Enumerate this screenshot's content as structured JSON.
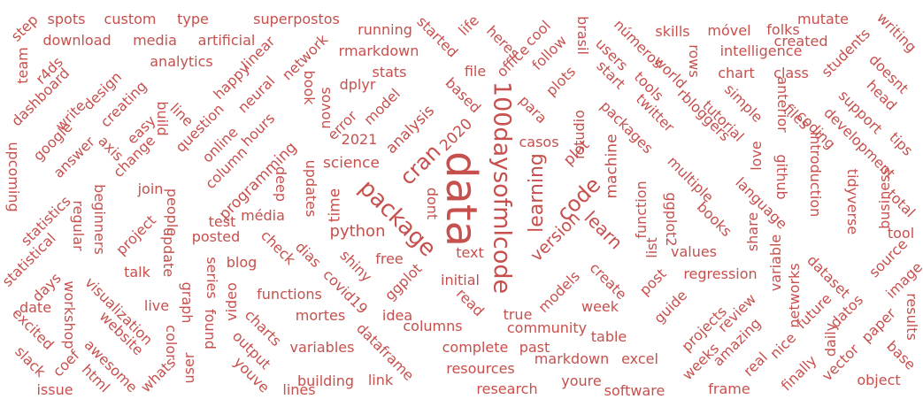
{
  "colors": {
    "word": "#c6504d",
    "background": "#ffffff"
  },
  "words": [
    {
      "text": "data",
      "weight": 48,
      "rot": 90
    },
    {
      "text": "100daysofmlcode",
      "weight": 27,
      "rot": 90
    },
    {
      "text": "package",
      "weight": 26,
      "rot": 45
    },
    {
      "text": "cran",
      "weight": 24,
      "rot": -45
    },
    {
      "text": "code",
      "weight": 24,
      "rot": -45
    },
    {
      "text": "learning",
      "weight": 22,
      "rot": -90
    },
    {
      "text": "learn",
      "weight": 20,
      "rot": 45
    },
    {
      "text": "version",
      "weight": 19,
      "rot": -45
    },
    {
      "text": "python",
      "weight": 18,
      "rot": 0
    },
    {
      "text": "science",
      "weight": 17,
      "rot": 0
    },
    {
      "text": "2020",
      "weight": 17,
      "rot": -45
    },
    {
      "text": "analysis",
      "weight": 17,
      "rot": -45
    },
    {
      "text": "machine",
      "weight": 17,
      "rot": -90
    },
    {
      "text": "programming",
      "weight": 17,
      "rot": -45
    },
    {
      "text": "time",
      "weight": 17,
      "rot": -90
    },
    {
      "text": "plot",
      "weight": 17,
      "rot": -45
    },
    {
      "text": "updates",
      "weight": 16,
      "rot": 90
    },
    {
      "text": "ggplot",
      "weight": 16,
      "rot": -45
    },
    {
      "text": "function",
      "weight": 16,
      "rot": -90
    },
    {
      "text": "free",
      "weight": 16,
      "rot": 0
    },
    {
      "text": "model",
      "weight": 16,
      "rot": -45
    },
    {
      "text": "shiny",
      "weight": 16,
      "rot": 45
    },
    {
      "text": "covid19",
      "weight": 16,
      "rot": 45
    },
    {
      "text": "dias",
      "weight": 16,
      "rot": 45
    },
    {
      "text": "initial",
      "weight": 16,
      "rot": 0
    },
    {
      "text": "check",
      "weight": 16,
      "rot": 45
    },
    {
      "text": "error",
      "weight": 16,
      "rot": -45
    },
    {
      "text": "multiple",
      "weight": 16,
      "rot": 45
    },
    {
      "text": "language",
      "weight": 16,
      "rot": 45
    },
    {
      "text": "books",
      "weight": 16,
      "rot": 45
    },
    {
      "text": "list",
      "weight": 16,
      "rot": -90
    },
    {
      "text": "post",
      "weight": 16,
      "rot": -45
    },
    {
      "text": "regression",
      "weight": 16,
      "rot": 0
    },
    {
      "text": "create",
      "weight": 16,
      "rot": 45
    },
    {
      "text": "models",
      "weight": 16,
      "rot": -45
    },
    {
      "text": "week",
      "weight": 16,
      "rot": 0
    },
    {
      "text": "community",
      "weight": 16,
      "rot": 0
    },
    {
      "text": "functions",
      "weight": 16,
      "rot": 0
    },
    {
      "text": "dplyr",
      "weight": 16,
      "rot": 0
    },
    {
      "text": "2021",
      "weight": 16,
      "rot": 0
    },
    {
      "text": "casos",
      "weight": 16,
      "rot": 0
    },
    {
      "text": "ggplot2",
      "weight": 16,
      "rot": 90
    },
    {
      "text": "rbloggers",
      "weight": 16,
      "rot": 45
    },
    {
      "text": "packages",
      "weight": 16,
      "rot": 45
    },
    {
      "text": "twitter",
      "weight": 16,
      "rot": 45
    },
    {
      "text": "deep",
      "weight": 16,
      "rot": 90
    },
    {
      "text": "média",
      "weight": 16,
      "rot": 0
    },
    {
      "text": "posted",
      "weight": 16,
      "rot": 0
    },
    {
      "text": "blog",
      "weight": 16,
      "rot": 0
    },
    {
      "text": "dont",
      "weight": 16,
      "rot": 90
    },
    {
      "text": "text",
      "weight": 16,
      "rot": 0
    },
    {
      "text": "based",
      "weight": 16,
      "rot": 45
    },
    {
      "text": "para",
      "weight": 16,
      "rot": 45
    },
    {
      "text": "values",
      "weight": 16,
      "rot": 0
    },
    {
      "text": "file",
      "weight": 16,
      "rot": 0
    },
    {
      "text": "office",
      "weight": 16,
      "rot": -45
    },
    {
      "text": "heres",
      "weight": 16,
      "rot": 45
    },
    {
      "text": "started",
      "weight": 16,
      "rot": 45
    },
    {
      "text": "life",
      "weight": 16,
      "rot": -45
    },
    {
      "text": "cool",
      "weight": 16,
      "rot": -45
    },
    {
      "text": "follow",
      "weight": 16,
      "rot": -45
    },
    {
      "text": "plots",
      "weight": 16,
      "rot": -45
    },
    {
      "text": "rstudio",
      "weight": 16,
      "rot": -90
    },
    {
      "text": "brasil",
      "weight": 16,
      "rot": 90
    },
    {
      "text": "users",
      "weight": 16,
      "rot": 45
    },
    {
      "text": "números",
      "weight": 16,
      "rot": 45
    },
    {
      "text": "start",
      "weight": 16,
      "rot": 45
    },
    {
      "text": "tools",
      "weight": 16,
      "rot": 45
    },
    {
      "text": "world",
      "weight": 16,
      "rot": 45
    },
    {
      "text": "rows",
      "weight": 16,
      "rot": 90
    },
    {
      "text": "skills",
      "weight": 16,
      "rot": 0
    },
    {
      "text": "móvel",
      "weight": 16,
      "rot": 0
    },
    {
      "text": "folks",
      "weight": 16,
      "rot": 0
    },
    {
      "text": "mutate",
      "weight": 16,
      "rot": 0
    },
    {
      "text": "writing",
      "weight": 16,
      "rot": 45
    },
    {
      "text": "intelligence",
      "weight": 16,
      "rot": 0
    },
    {
      "text": "created",
      "weight": 16,
      "rot": 0
    },
    {
      "text": "chart",
      "weight": 16,
      "rot": 0
    },
    {
      "text": "class",
      "weight": 16,
      "rot": 0
    },
    {
      "text": "students",
      "weight": 16,
      "rot": -45
    },
    {
      "text": "doesnt",
      "weight": 16,
      "rot": 45
    },
    {
      "text": "head",
      "weight": 16,
      "rot": 45
    },
    {
      "text": "tutorial",
      "weight": 16,
      "rot": 45
    },
    {
      "text": "simple",
      "weight": 16,
      "rot": 45
    },
    {
      "text": "anterior",
      "weight": 16,
      "rot": 90
    },
    {
      "text": "files",
      "weight": 16,
      "rot": 45
    },
    {
      "text": "coding",
      "weight": 16,
      "rot": 45
    },
    {
      "text": "support",
      "weight": 16,
      "rot": 45
    },
    {
      "text": "development",
      "weight": 16,
      "rot": 45
    },
    {
      "text": "tips",
      "weight": 16,
      "rot": 45
    },
    {
      "text": "love",
      "weight": 16,
      "rot": -90
    },
    {
      "text": "github",
      "weight": 16,
      "rot": 90
    },
    {
      "text": "introduction",
      "weight": 16,
      "rot": 90
    },
    {
      "text": "tidyverse",
      "weight": 16,
      "rot": 90
    },
    {
      "text": "business",
      "weight": 16,
      "rot": -90
    },
    {
      "text": "total",
      "weight": 16,
      "rot": 45
    },
    {
      "text": "share",
      "weight": 16,
      "rot": -90
    },
    {
      "text": "variable",
      "weight": 16,
      "rot": -90
    },
    {
      "text": "tool",
      "weight": 16,
      "rot": 0
    },
    {
      "text": "source",
      "weight": 16,
      "rot": -45
    },
    {
      "text": "image",
      "weight": 16,
      "rot": -45
    },
    {
      "text": "dataset",
      "weight": 16,
      "rot": 45
    },
    {
      "text": "networks",
      "weight": 16,
      "rot": -90
    },
    {
      "text": "results",
      "weight": 16,
      "rot": 90
    },
    {
      "text": "review",
      "weight": 16,
      "rot": -45
    },
    {
      "text": "projects",
      "weight": 16,
      "rot": -45
    },
    {
      "text": "guide",
      "weight": 16,
      "rot": -45
    },
    {
      "text": "amazing",
      "weight": 16,
      "rot": -45
    },
    {
      "text": "future",
      "weight": 16,
      "rot": -45
    },
    {
      "text": "datos",
      "weight": 16,
      "rot": -45
    },
    {
      "text": "paper",
      "weight": 16,
      "rot": -45
    },
    {
      "text": "daily",
      "weight": 16,
      "rot": -90
    },
    {
      "text": "base",
      "weight": 16,
      "rot": 45
    },
    {
      "text": "weeks",
      "weight": 16,
      "rot": -45
    },
    {
      "text": "real",
      "weight": 16,
      "rot": -45
    },
    {
      "text": "nice",
      "weight": 16,
      "rot": -45
    },
    {
      "text": "vector",
      "weight": 16,
      "rot": -45
    },
    {
      "text": "finally",
      "weight": 16,
      "rot": -45
    },
    {
      "text": "object",
      "weight": 16,
      "rot": 0
    },
    {
      "text": "frame",
      "weight": 16,
      "rot": 0
    },
    {
      "text": "software",
      "weight": 16,
      "rot": 0
    },
    {
      "text": "youre",
      "weight": 16,
      "rot": 0
    },
    {
      "text": "research",
      "weight": 16,
      "rot": 0
    },
    {
      "text": "resources",
      "weight": 16,
      "rot": 0
    },
    {
      "text": "markdown",
      "weight": 16,
      "rot": 0
    },
    {
      "text": "excel",
      "weight": 16,
      "rot": 0
    },
    {
      "text": "table",
      "weight": 16,
      "rot": 0
    },
    {
      "text": "complete",
      "weight": 16,
      "rot": 0
    },
    {
      "text": "past",
      "weight": 16,
      "rot": 0
    },
    {
      "text": "true",
      "weight": 16,
      "rot": 0
    },
    {
      "text": "columns",
      "weight": 16,
      "rot": 0
    },
    {
      "text": "idea",
      "weight": 16,
      "rot": 0
    },
    {
      "text": "read",
      "weight": 16,
      "rot": 45
    },
    {
      "text": "mortes",
      "weight": 16,
      "rot": 0
    },
    {
      "text": "dataframe",
      "weight": 16,
      "rot": 45
    },
    {
      "text": "variables",
      "weight": 16,
      "rot": 0
    },
    {
      "text": "building",
      "weight": 16,
      "rot": 0
    },
    {
      "text": "link",
      "weight": 16,
      "rot": 0
    },
    {
      "text": "lines",
      "weight": 16,
      "rot": 0
    },
    {
      "text": "youve",
      "weight": 16,
      "rot": 45
    },
    {
      "text": "output",
      "weight": 16,
      "rot": 45
    },
    {
      "text": "charts",
      "weight": 16,
      "rot": 45
    },
    {
      "text": "video",
      "weight": 16,
      "rot": -90
    },
    {
      "text": "found",
      "weight": 16,
      "rot": 90
    },
    {
      "text": "series",
      "weight": 16,
      "rot": 90
    },
    {
      "text": "graph",
      "weight": 16,
      "rot": 90
    },
    {
      "text": "user",
      "weight": 16,
      "rot": -90
    },
    {
      "text": "color",
      "weight": 16,
      "rot": 90
    },
    {
      "text": "live",
      "weight": 16,
      "rot": 0
    },
    {
      "text": "whats",
      "weight": 16,
      "rot": -45
    },
    {
      "text": "awesome",
      "weight": 16,
      "rot": 45
    },
    {
      "text": "website",
      "weight": 16,
      "rot": 45
    },
    {
      "text": "visualization",
      "weight": 16,
      "rot": 45
    },
    {
      "text": "html",
      "weight": 16,
      "rot": 45
    },
    {
      "text": "coef",
      "weight": 16,
      "rot": -45
    },
    {
      "text": "workshop",
      "weight": 16,
      "rot": 90
    },
    {
      "text": "issue",
      "weight": 16,
      "rot": 0
    },
    {
      "text": "slack",
      "weight": 16,
      "rot": 45
    },
    {
      "text": "excited",
      "weight": 16,
      "rot": 45
    },
    {
      "text": "date",
      "weight": 16,
      "rot": 0
    },
    {
      "text": "days",
      "weight": 16,
      "rot": -45
    },
    {
      "text": "statistical",
      "weight": 16,
      "rot": -45
    },
    {
      "text": "statistics",
      "weight": 16,
      "rot": -45
    },
    {
      "text": "regular",
      "weight": 16,
      "rot": 90
    },
    {
      "text": "beginners",
      "weight": 16,
      "rot": 90
    },
    {
      "text": "project",
      "weight": 16,
      "rot": -45
    },
    {
      "text": "talk",
      "weight": 16,
      "rot": 0
    },
    {
      "text": "update",
      "weight": 16,
      "rot": 90
    },
    {
      "text": "people",
      "weight": 16,
      "rot": 90
    },
    {
      "text": "join",
      "weight": 16,
      "rot": 0
    },
    {
      "text": "test",
      "weight": 16,
      "rot": 0
    },
    {
      "text": "change",
      "weight": 16,
      "rot": -45
    },
    {
      "text": "axis",
      "weight": 16,
      "rot": 45
    },
    {
      "text": "answer",
      "weight": 16,
      "rot": -45
    },
    {
      "text": "google",
      "weight": 16,
      "rot": -45
    },
    {
      "text": "upcoming",
      "weight": 16,
      "rot": 90
    },
    {
      "text": "easy",
      "weight": 16,
      "rot": -45
    },
    {
      "text": "creating",
      "weight": 16,
      "rot": -45
    },
    {
      "text": "write",
      "weight": 16,
      "rot": -45
    },
    {
      "text": "design",
      "weight": 16,
      "rot": -45
    },
    {
      "text": "dashboard",
      "weight": 16,
      "rot": -45
    },
    {
      "text": "team",
      "weight": 16,
      "rot": -90
    },
    {
      "text": "r4ds",
      "weight": 16,
      "rot": -45
    },
    {
      "text": "step",
      "weight": 16,
      "rot": -45
    },
    {
      "text": "spots",
      "weight": 16,
      "rot": 0
    },
    {
      "text": "custom",
      "weight": 16,
      "rot": 0
    },
    {
      "text": "type",
      "weight": 16,
      "rot": 0
    },
    {
      "text": "superpostos",
      "weight": 16,
      "rot": 0
    },
    {
      "text": "download",
      "weight": 16,
      "rot": 0
    },
    {
      "text": "media",
      "weight": 16,
      "rot": 0
    },
    {
      "text": "artificial",
      "weight": 16,
      "rot": 0
    },
    {
      "text": "analytics",
      "weight": 16,
      "rot": 0
    },
    {
      "text": "linear",
      "weight": 16,
      "rot": -45
    },
    {
      "text": "network",
      "weight": 16,
      "rot": -45
    },
    {
      "text": "happy",
      "weight": 16,
      "rot": -45
    },
    {
      "text": "neural",
      "weight": 16,
      "rot": -45
    },
    {
      "text": "line",
      "weight": 16,
      "rot": 45
    },
    {
      "text": "build",
      "weight": 16,
      "rot": 90
    },
    {
      "text": "question",
      "weight": 16,
      "rot": -45
    },
    {
      "text": "online",
      "weight": 16,
      "rot": -45
    },
    {
      "text": "hours",
      "weight": 16,
      "rot": -45
    },
    {
      "text": "column",
      "weight": 16,
      "rot": -45
    },
    {
      "text": "book",
      "weight": 16,
      "rot": 90
    },
    {
      "text": "novos",
      "weight": 16,
      "rot": -90
    },
    {
      "text": "running",
      "weight": 16,
      "rot": 0
    },
    {
      "text": "rmarkdown",
      "weight": 16,
      "rot": 0
    },
    {
      "text": "stats",
      "weight": 16,
      "rot": 0
    }
  ]
}
